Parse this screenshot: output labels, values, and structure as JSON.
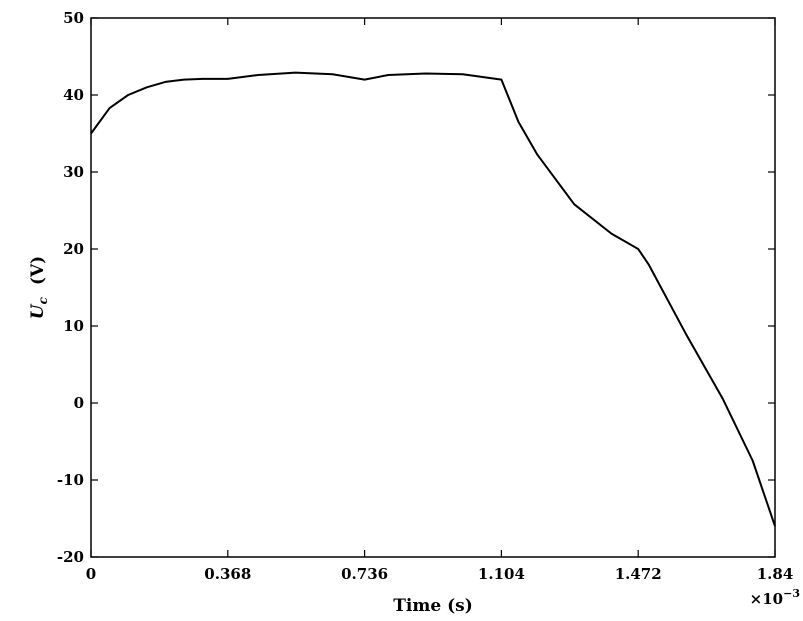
{
  "chart_data": {
    "type": "line",
    "xlabel": "Time (s)",
    "ylabel_main": "U",
    "ylabel_sub": "c",
    "ylabel_unit": "(V)",
    "x_multiplier": "×10",
    "x_multiplier_exp": "−3",
    "xlim": [
      0,
      1.84
    ],
    "ylim": [
      -20,
      50
    ],
    "xticks": [
      0,
      0.368,
      0.736,
      1.104,
      1.472,
      1.84
    ],
    "xtick_labels": [
      "0",
      "0.368",
      "0.736",
      "1.104",
      "1.472",
      "1.84"
    ],
    "yticks": [
      -20,
      -10,
      0,
      10,
      20,
      30,
      40,
      50
    ],
    "ytick_labels": [
      "-20",
      "-10",
      "0",
      "10",
      "20",
      "30",
      "40",
      "50"
    ],
    "grid": false,
    "series": [
      {
        "x": [
          0,
          0.05,
          0.1,
          0.15,
          0.2,
          0.25,
          0.3,
          0.368,
          0.45,
          0.55,
          0.65,
          0.736,
          0.8,
          0.9,
          1.0,
          1.104,
          1.15,
          1.2,
          1.3,
          1.4,
          1.472,
          1.5,
          1.6,
          1.7,
          1.78,
          1.84
        ],
        "y": [
          35,
          38.3,
          40.0,
          41.0,
          41.7,
          42.0,
          42.1,
          42.1,
          42.6,
          42.9,
          42.7,
          42.0,
          42.6,
          42.8,
          42.7,
          42.0,
          36.5,
          32.3,
          25.8,
          22.0,
          20.0,
          18.0,
          9.0,
          0.5,
          -7.5,
          -16.0
        ]
      }
    ]
  }
}
